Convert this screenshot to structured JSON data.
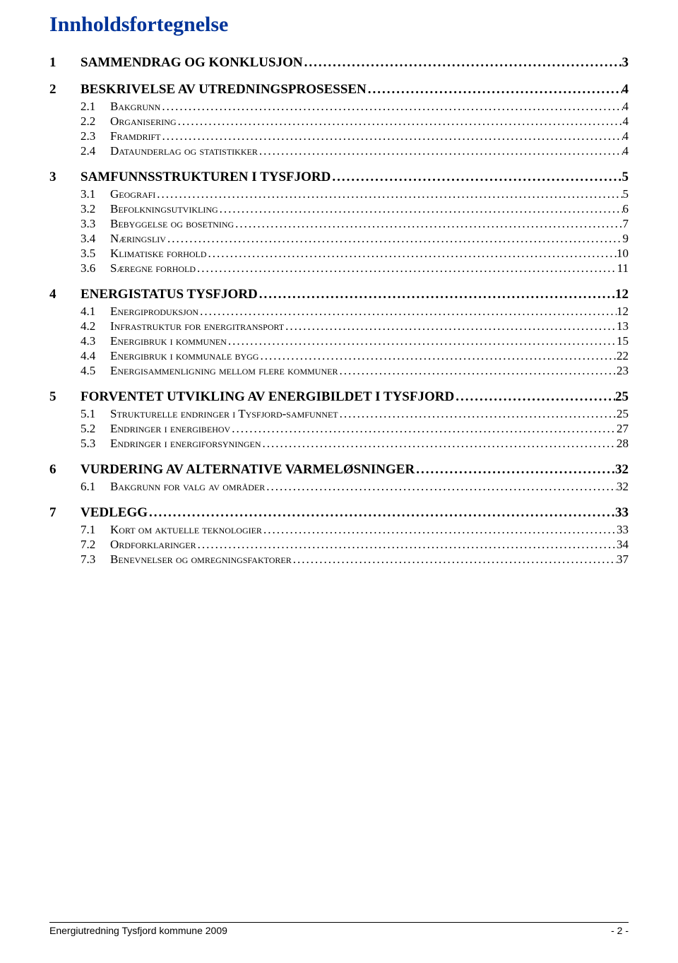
{
  "title_color": "#003399",
  "heading": "Innholdsfortegnelse",
  "toc": [
    {
      "level": 1,
      "num": "1",
      "label": "SAMMENDRAG OG KONKLUSJON",
      "page": "3"
    },
    {
      "level": 1,
      "num": "2",
      "label": "BESKRIVELSE AV UTREDNINGSPROSESSEN",
      "page": "4"
    },
    {
      "level": 2,
      "num": "2.1",
      "label": "Bakgrunn",
      "page": "4"
    },
    {
      "level": 2,
      "num": "2.2",
      "label": "Organisering",
      "page": "4"
    },
    {
      "level": 2,
      "num": "2.3",
      "label": "Framdrift",
      "page": "4"
    },
    {
      "level": 2,
      "num": "2.4",
      "label": "Dataunderlag og statistikker",
      "page": "4"
    },
    {
      "level": 1,
      "num": "3",
      "label": "SAMFUNNSSTRUKTUREN I TYSFJORD",
      "page": "5"
    },
    {
      "level": 2,
      "num": "3.1",
      "label": "Geografi",
      "page": "5"
    },
    {
      "level": 2,
      "num": "3.2",
      "label": "Befolkningsutvikling",
      "page": "6"
    },
    {
      "level": 2,
      "num": "3.3",
      "label": "Bebyggelse og bosetning",
      "page": "7"
    },
    {
      "level": 2,
      "num": "3.4",
      "label": "Næringsliv",
      "page": "9"
    },
    {
      "level": 2,
      "num": "3.5",
      "label": "Klimatiske forhold",
      "page": "10"
    },
    {
      "level": 2,
      "num": "3.6",
      "label": "Særegne forhold",
      "page": "11"
    },
    {
      "level": 1,
      "num": "4",
      "label": "ENERGISTATUS TYSFJORD",
      "page": "12"
    },
    {
      "level": 2,
      "num": "4.1",
      "label": "Energiproduksjon",
      "page": "12"
    },
    {
      "level": 2,
      "num": "4.2",
      "label": "Infrastruktur for energitransport",
      "page": "13"
    },
    {
      "level": 2,
      "num": "4.3",
      "label": "Energibruk i kommunen",
      "page": "15"
    },
    {
      "level": 2,
      "num": "4.4",
      "label": "Energibruk i kommunale bygg",
      "page": "22"
    },
    {
      "level": 2,
      "num": "4.5",
      "label": "Energisammenligning mellom flere kommuner",
      "page": "23"
    },
    {
      "level": 1,
      "num": "5",
      "label": "FORVENTET UTVIKLING AV ENERGIBILDET I TYSFJORD",
      "page": "25"
    },
    {
      "level": 2,
      "num": "5.1",
      "label": "Strukturelle endringer i Tysfjord-samfunnet",
      "page": "25"
    },
    {
      "level": 2,
      "num": "5.2",
      "label": "Endringer i energibehov",
      "page": "27"
    },
    {
      "level": 2,
      "num": "5.3",
      "label": "Endringer i energiforsyningen",
      "page": "28"
    },
    {
      "level": 1,
      "num": "6",
      "label": "VURDERING AV ALTERNATIVE VARMELØSNINGER",
      "page": "32"
    },
    {
      "level": 2,
      "num": "6.1",
      "label": "Bakgrunn for valg av områder",
      "page": "32"
    },
    {
      "level": 1,
      "num": "7",
      "label": "VEDLEGG",
      "page": "33"
    },
    {
      "level": 2,
      "num": "7.1",
      "label": "Kort om aktuelle teknologier",
      "page": "33"
    },
    {
      "level": 2,
      "num": "7.2",
      "label": "Ordforklaringer",
      "page": "34"
    },
    {
      "level": 2,
      "num": "7.3",
      "label": "Benevnelser og omregningsfaktorer",
      "page": "37"
    }
  ],
  "footer": {
    "left": "Energiutredning Tysfjord kommune 2009",
    "right": "-  2  -"
  }
}
